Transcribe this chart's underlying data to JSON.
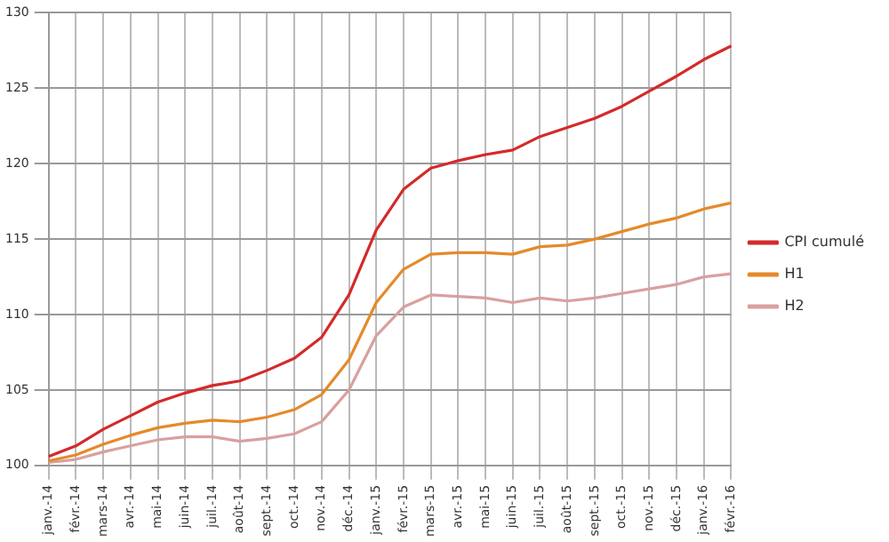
{
  "chart_data": {
    "type": "line",
    "categories": [
      "janv.-14",
      "févr.-14",
      "mars-14",
      "avr.-14",
      "mai-14",
      "juin-14",
      "juil.-14",
      "août-14",
      "sept.-14",
      "oct.-14",
      "nov.-14",
      "déc.-14",
      "janv.-15",
      "févr.-15",
      "mars-15",
      "avr.-15",
      "mai-15",
      "juin-15",
      "juil.-15",
      "août-15",
      "sept.-15",
      "oct.-15",
      "nov.-15",
      "déc.-15",
      "janv.-16",
      "févr.-16"
    ],
    "series": [
      {
        "name": "CPI cumulé",
        "color": "#d42a2a",
        "values": [
          100.6,
          101.3,
          102.4,
          103.3,
          104.2,
          104.8,
          105.3,
          105.6,
          106.3,
          107.1,
          108.5,
          111.3,
          115.6,
          118.3,
          119.7,
          120.2,
          120.6,
          120.9,
          121.8,
          122.4,
          123.0,
          123.8,
          124.8,
          125.8,
          126.9,
          127.8
        ]
      },
      {
        "name": "H1",
        "color": "#e58a2a",
        "values": [
          100.3,
          100.7,
          101.4,
          102.0,
          102.5,
          102.8,
          103.0,
          102.9,
          103.2,
          103.7,
          104.7,
          107.0,
          110.8,
          113.0,
          114.0,
          114.1,
          114.1,
          114.0,
          114.5,
          114.6,
          115.0,
          115.5,
          116.0,
          116.4,
          117.0,
          117.4
        ]
      },
      {
        "name": "H2",
        "color": "#d9a0a0",
        "values": [
          100.2,
          100.4,
          100.9,
          101.3,
          101.7,
          101.9,
          101.9,
          101.6,
          101.8,
          102.1,
          102.9,
          105.0,
          108.6,
          110.5,
          111.3,
          111.2,
          111.1,
          110.8,
          111.1,
          110.9,
          111.1,
          111.4,
          111.7,
          112.0,
          112.5,
          112.7
        ]
      }
    ],
    "ylim": [
      100,
      130
    ],
    "yticks": [
      100,
      105,
      110,
      115,
      120,
      125,
      130
    ],
    "grid": true,
    "legend": "right",
    "marker": "none",
    "line_style": "solid"
  }
}
